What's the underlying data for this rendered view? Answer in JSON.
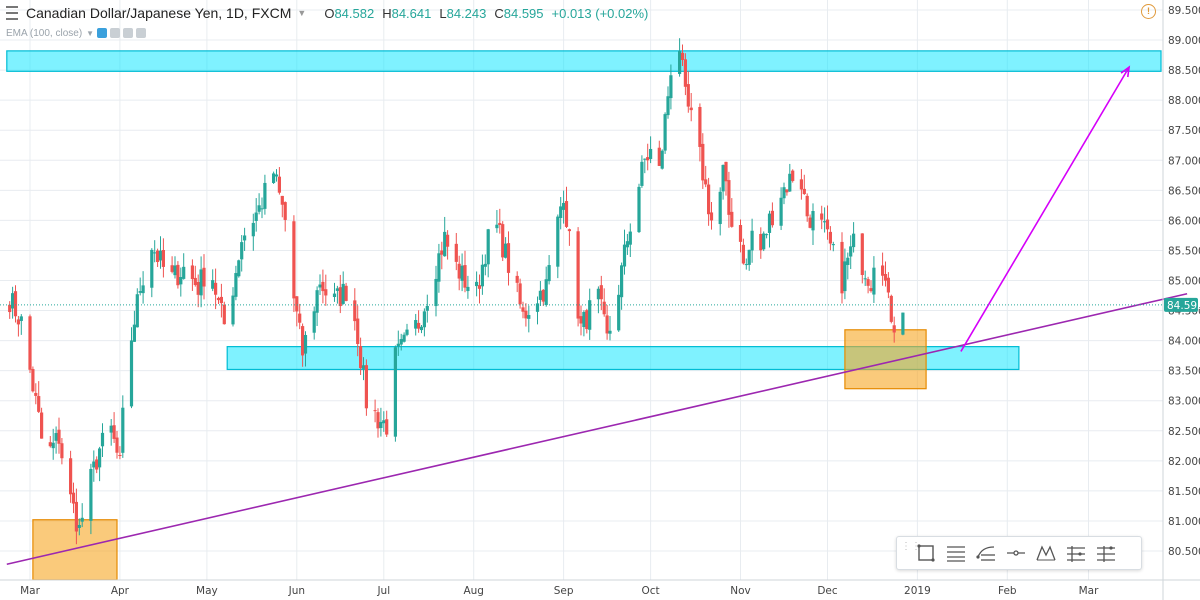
{
  "header": {
    "symbol": "Canadian Dollar/Japanese Yen, 1D, FXCM",
    "open_label": "O",
    "open": "84.582",
    "high_label": "H",
    "high": "84.641",
    "low_label": "L",
    "low": "84.243",
    "close_label": "C",
    "close": "84.595",
    "change": "+0.013 (+0.02%)"
  },
  "indicator": {
    "label": "EMA (100, close)"
  },
  "colors": {
    "up": "#26a69a",
    "down": "#ef5350",
    "zone_cyan": "#00e5ff",
    "zone_orange": "#f6a623",
    "trendline": "#9c27b0",
    "projection": "#d500f9",
    "last_price": "#26a69a"
  },
  "toolbar": {
    "tools": [
      "rectangle-tool-icon",
      "parallel-lines-tool-icon",
      "fib-tool-icon",
      "horizontal-ray-tool-icon",
      "pattern-tool-icon",
      "long-position-tool-icon",
      "short-position-tool-icon"
    ]
  },
  "chart_data": {
    "type": "candlestick",
    "title": "Canadian Dollar/Japanese Yen, 1D, FXCM",
    "ylim": [
      79.95,
      89.55
    ],
    "y_ticks": [
      "80.500",
      "81.000",
      "81.500",
      "82.000",
      "82.500",
      "83.000",
      "83.500",
      "84.000",
      "84.500",
      "85.000",
      "85.500",
      "86.000",
      "86.500",
      "87.000",
      "87.500",
      "88.000",
      "88.500",
      "89.000",
      "89.500"
    ],
    "x_labels": [
      "Mar",
      "Apr",
      "May",
      "Jun",
      "Jul",
      "Aug",
      "Sep",
      "Oct",
      "Nov",
      "Dec",
      "2019",
      "Feb",
      "Mar"
    ],
    "x_label_days": [
      0,
      31,
      61,
      92,
      122,
      153,
      184,
      214,
      245,
      275,
      306,
      337,
      365
    ],
    "last_price": "84.595",
    "anchors": [
      [
        -8,
        84.8
      ],
      [
        -3,
        84.3
      ],
      [
        3,
        82.7
      ],
      [
        5,
        82.0
      ],
      [
        10,
        82.4
      ],
      [
        13,
        81.5
      ],
      [
        15,
        81.2
      ],
      [
        17,
        80.85
      ],
      [
        20,
        81.5
      ],
      [
        24,
        82.2
      ],
      [
        28,
        82.5
      ],
      [
        31,
        81.9
      ],
      [
        33,
        83.5
      ],
      [
        38,
        84.9
      ],
      [
        42,
        85.6
      ],
      [
        48,
        85.0
      ],
      [
        53,
        85.2
      ],
      [
        58,
        84.9
      ],
      [
        62,
        85.3
      ],
      [
        65,
        84.6
      ],
      [
        68,
        84.1
      ],
      [
        70,
        84.9
      ],
      [
        73,
        85.7
      ],
      [
        79,
        86.2
      ],
      [
        84,
        86.8
      ],
      [
        88,
        86.0
      ],
      [
        91,
        84.7
      ],
      [
        94,
        83.8
      ],
      [
        97,
        84.4
      ],
      [
        100,
        85.0
      ],
      [
        104,
        84.6
      ],
      [
        110,
        84.9
      ],
      [
        113,
        84.1
      ],
      [
        116,
        83.0
      ],
      [
        120,
        82.7
      ],
      [
        123,
        82.6
      ],
      [
        126,
        83.7
      ],
      [
        130,
        84.0
      ],
      [
        134,
        84.3
      ],
      [
        136,
        84.6
      ],
      [
        139,
        85.1
      ],
      [
        143,
        85.7
      ],
      [
        146,
        85.3
      ],
      [
        150,
        85.0
      ],
      [
        154,
        84.8
      ],
      [
        157,
        85.5
      ],
      [
        160,
        86.0
      ],
      [
        163,
        85.6
      ],
      [
        166,
        85.1
      ],
      [
        170,
        84.4
      ],
      [
        174,
        84.7
      ],
      [
        178,
        84.9
      ],
      [
        181,
        85.7
      ],
      [
        184,
        86.5
      ],
      [
        187,
        85.2
      ],
      [
        190,
        84.2
      ],
      [
        193,
        84.5
      ],
      [
        196,
        84.7
      ],
      [
        199,
        84.0
      ],
      [
        202,
        84.6
      ],
      [
        206,
        85.7
      ],
      [
        209,
        86.4
      ],
      [
        212,
        87.0
      ],
      [
        215,
        87.2
      ],
      [
        217,
        86.8
      ],
      [
        220,
        88.1
      ],
      [
        222,
        89.0
      ],
      [
        224,
        88.9
      ],
      [
        226,
        88.0
      ],
      [
        229,
        87.5
      ],
      [
        232,
        86.8
      ],
      [
        235,
        86.0
      ],
      [
        237,
        86.1
      ],
      [
        239,
        86.8
      ],
      [
        241,
        86.1
      ],
      [
        244,
        85.9
      ],
      [
        247,
        85.2
      ],
      [
        249,
        85.8
      ],
      [
        252,
        85.5
      ],
      [
        255,
        86.0
      ],
      [
        258,
        86.4
      ],
      [
        261,
        86.6
      ],
      [
        265,
        86.9
      ],
      [
        268,
        86.1
      ],
      [
        271,
        86.0
      ],
      [
        274,
        85.8
      ],
      [
        277,
        85.4
      ],
      [
        279,
        84.8
      ],
      [
        281,
        85.2
      ],
      [
        284,
        85.6
      ],
      [
        287,
        85.3
      ],
      [
        290,
        85.0
      ],
      [
        293,
        86.2
      ],
      [
        294,
        85.3
      ],
      [
        296,
        84.6
      ],
      [
        298,
        84.3
      ],
      [
        300,
        84.55
      ],
      [
        301,
        84.6
      ]
    ],
    "zones": [
      {
        "color": "cyan",
        "day_from": -8,
        "day_to": 397,
        "price_low": 88.48,
        "price_high": 88.82
      },
      {
        "color": "cyan",
        "day_from": 68,
        "day_to": 341,
        "price_low": 83.52,
        "price_high": 83.9
      },
      {
        "color": "orange",
        "day_from": 1,
        "day_to": 30,
        "price_low": 80.02,
        "price_high": 81.02
      },
      {
        "color": "orange",
        "day_from": 281,
        "day_to": 309,
        "price_low": 83.2,
        "price_high": 84.18
      }
    ],
    "trendline": {
      "from": [
        -8,
        80.28
      ],
      "to": [
        399,
        84.78
      ]
    },
    "projection": {
      "from": [
        321,
        83.82
      ],
      "to": [
        379,
        88.55
      ]
    }
  }
}
